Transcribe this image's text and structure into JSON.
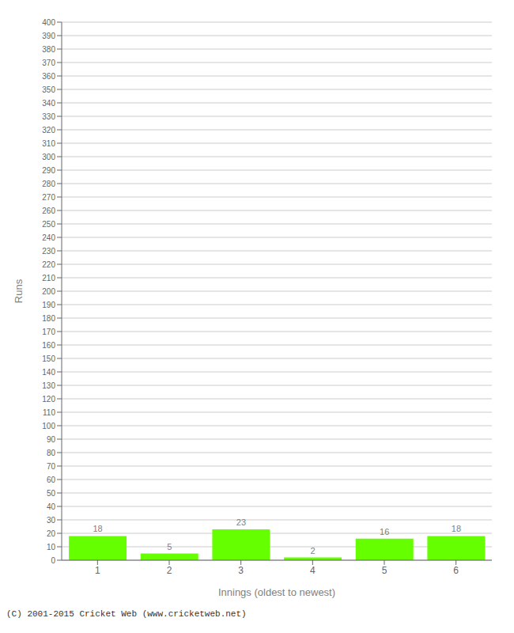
{
  "chart_data": {
    "type": "bar",
    "categories": [
      "1",
      "2",
      "3",
      "4",
      "5",
      "6"
    ],
    "values": [
      18,
      5,
      23,
      2,
      16,
      18
    ],
    "color": "#66ff00",
    "xlabel": "Innings (oldest to newest)",
    "ylabel": "Runs",
    "ylim": [
      0,
      400
    ],
    "yticks": [
      0,
      10,
      20,
      30,
      40,
      50,
      60,
      70,
      80,
      90,
      100,
      110,
      120,
      130,
      140,
      150,
      160,
      170,
      180,
      190,
      200,
      210,
      220,
      230,
      240,
      250,
      260,
      270,
      280,
      290,
      300,
      310,
      320,
      330,
      340,
      350,
      360,
      370,
      380,
      390,
      400
    ],
    "grid": true,
    "data_labels": true,
    "annotations": [
      "(C) 2001-2015 Cricket Web (www.cricketweb.net)"
    ]
  }
}
